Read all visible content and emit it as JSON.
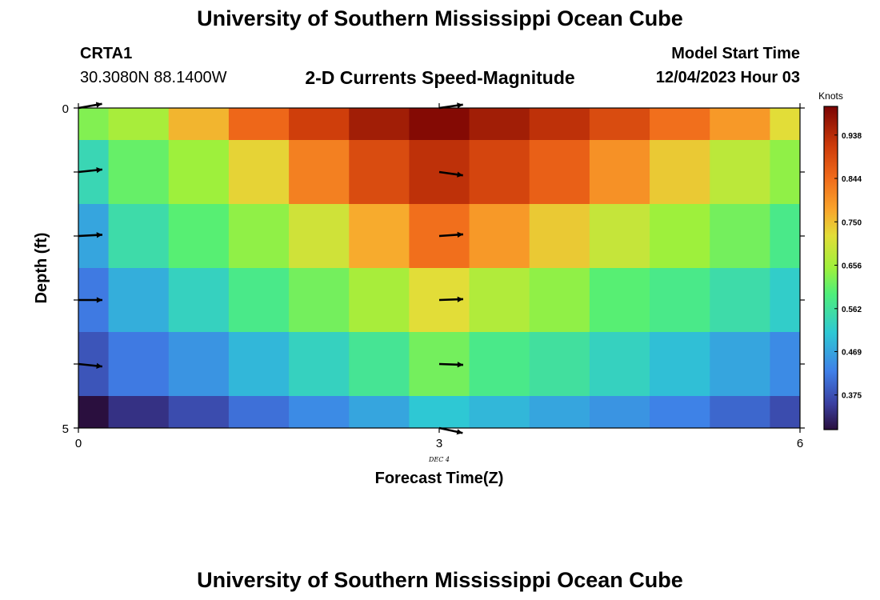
{
  "header": {
    "title": "University of Southern Mississippi Ocean Cube",
    "station": "CRTA1",
    "coords": "30.3080N  88.1400W",
    "subtitle": "2-D Currents Speed-Magnitude",
    "model_label": "Model Start Time",
    "model_time": "12/04/2023 Hour 03"
  },
  "footer": {
    "title": "University of Southern Mississippi Ocean Cube"
  },
  "chart_data": {
    "type": "heatmap",
    "xlabel": "Forecast Time(Z)",
    "ylabel": "Depth (ft)",
    "x_ticks": [
      "0",
      "3",
      "6"
    ],
    "x_date_label": "DEC 4",
    "y_ticks": [
      "0",
      "5"
    ],
    "xlim": [
      0,
      6
    ],
    "ylim": [
      0,
      5
    ],
    "colorbar": {
      "label": "Knots",
      "min": 0.3,
      "max": 1.0,
      "ticks": [
        "0.375",
        "0.469",
        "0.562",
        "0.656",
        "0.750",
        "0.844",
        "0.938"
      ],
      "tick_values": [
        0.375,
        0.469,
        0.562,
        0.656,
        0.75,
        0.844,
        0.938
      ]
    },
    "columns": [
      0,
      0.5,
      1,
      1.5,
      2,
      2.5,
      3,
      3.5,
      4,
      4.5,
      5,
      5.5,
      6
    ],
    "rows": [
      0,
      1,
      2,
      3,
      4,
      5
    ],
    "values": [
      [
        0.63,
        0.66,
        0.76,
        0.85,
        0.91,
        0.96,
        0.99,
        0.96,
        0.93,
        0.89,
        0.84,
        0.79,
        0.72
      ],
      [
        0.54,
        0.61,
        0.65,
        0.73,
        0.82,
        0.89,
        0.93,
        0.9,
        0.86,
        0.8,
        0.74,
        0.68,
        0.64
      ],
      [
        0.47,
        0.55,
        0.6,
        0.64,
        0.7,
        0.77,
        0.84,
        0.79,
        0.74,
        0.69,
        0.65,
        0.62,
        0.58
      ],
      [
        0.42,
        0.48,
        0.53,
        0.58,
        0.62,
        0.66,
        0.72,
        0.67,
        0.64,
        0.6,
        0.58,
        0.55,
        0.52
      ],
      [
        0.38,
        0.42,
        0.45,
        0.49,
        0.53,
        0.57,
        0.62,
        0.58,
        0.56,
        0.53,
        0.5,
        0.47,
        0.44
      ],
      [
        0.3,
        0.34,
        0.37,
        0.41,
        0.44,
        0.47,
        0.51,
        0.49,
        0.47,
        0.45,
        0.43,
        0.4,
        0.37
      ]
    ],
    "vectors": [
      {
        "t": 0,
        "depth": 0,
        "dir": 10
      },
      {
        "t": 0,
        "depth": 1,
        "dir": 6
      },
      {
        "t": 0,
        "depth": 2,
        "dir": 3
      },
      {
        "t": 0,
        "depth": 3,
        "dir": 0
      },
      {
        "t": 0,
        "depth": 4,
        "dir": -6
      },
      {
        "t": 3,
        "depth": 0,
        "dir": 8
      },
      {
        "t": 3,
        "depth": 1,
        "dir": -8
      },
      {
        "t": 3,
        "depth": 2,
        "dir": 4
      },
      {
        "t": 3,
        "depth": 3,
        "dir": 2
      },
      {
        "t": 3,
        "depth": 4,
        "dir": -2
      },
      {
        "t": 3,
        "depth": 5,
        "dir": -12
      }
    ]
  }
}
